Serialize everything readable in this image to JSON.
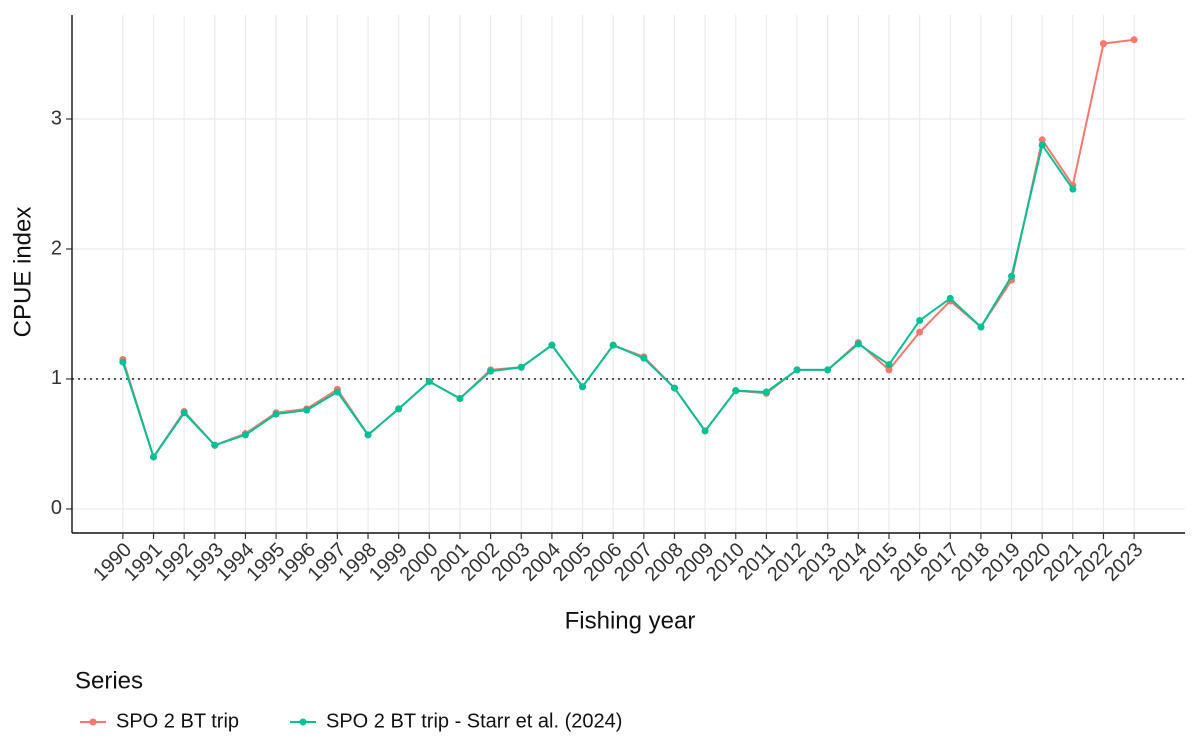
{
  "chart_data": {
    "type": "line",
    "x_label": "Fishing year",
    "y_label": "CPUE index",
    "categories": [
      "1990",
      "1991",
      "1992",
      "1993",
      "1994",
      "1995",
      "1996",
      "1997",
      "1998",
      "1999",
      "2000",
      "2001",
      "2002",
      "2003",
      "2004",
      "2005",
      "2006",
      "2007",
      "2008",
      "2009",
      "2010",
      "2011",
      "2012",
      "2013",
      "2014",
      "2015",
      "2016",
      "2017",
      "2018",
      "2019",
      "2020",
      "2021",
      "2022",
      "2023"
    ],
    "series": [
      {
        "name": "SPO 2 BT trip",
        "color": "#F8766D",
        "values": [
          1.15,
          0.4,
          0.75,
          0.49,
          0.58,
          0.74,
          0.77,
          0.92,
          0.57,
          0.77,
          0.98,
          0.85,
          1.07,
          1.09,
          1.26,
          0.94,
          1.26,
          1.17,
          0.93,
          0.6,
          0.91,
          0.89,
          1.07,
          1.07,
          1.28,
          1.07,
          1.36,
          1.6,
          1.4,
          1.76,
          2.84,
          2.49,
          3.58,
          3.61
        ]
      },
      {
        "name": "SPO 2 BT trip - Starr et al. (2024)",
        "color": "#00C094",
        "values": [
          1.13,
          0.4,
          0.74,
          0.49,
          0.57,
          0.73,
          0.76,
          0.9,
          0.57,
          0.77,
          0.98,
          0.85,
          1.06,
          1.09,
          1.26,
          0.94,
          1.26,
          1.16,
          0.93,
          0.6,
          0.91,
          0.9,
          1.07,
          1.07,
          1.27,
          1.11,
          1.45,
          1.62,
          1.4,
          1.79,
          2.8,
          2.46,
          null,
          null
        ]
      }
    ],
    "ylim": [
      -0.185,
      3.8
    ],
    "yticks": [
      0,
      1,
      2,
      3
    ],
    "hline": 1,
    "grid": true,
    "legend_title": "Series",
    "legend_position": "bottom"
  }
}
